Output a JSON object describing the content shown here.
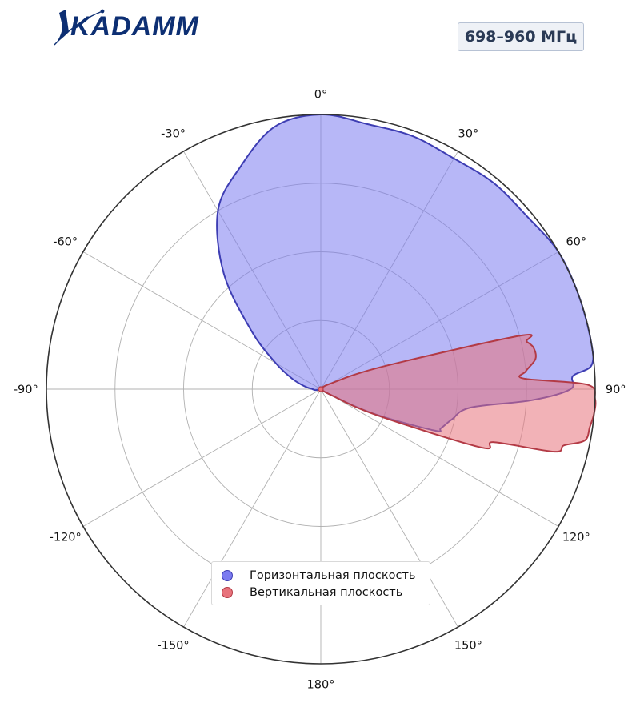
{
  "logo": {
    "text": "KADAMM"
  },
  "band_label": "698–960 МГц",
  "colors": {
    "horizontal_fill": "#7b7bf0",
    "horizontal_stroke": "#3d3db3",
    "vertical_fill": "#e8737c",
    "vertical_stroke": "#b33a45",
    "grid": "#b0b0b0",
    "frame": "#333333"
  },
  "chart_data": {
    "type": "polar-area",
    "title": "",
    "angle_ticks": [
      "0°",
      "30°",
      "60°",
      "90°",
      "120°",
      "150°",
      "180°",
      "-150°",
      "-120°",
      "-90°",
      "-60°",
      "-30°"
    ],
    "angle_tick_degrees": [
      0,
      30,
      60,
      90,
      120,
      150,
      180,
      -150,
      -120,
      -90,
      -60,
      -30
    ],
    "radial_range": [
      0,
      1
    ],
    "radial_grid": [
      0.25,
      0.5,
      0.75,
      1.0
    ],
    "grid": true,
    "legend_placement": "bottom-center",
    "series": [
      {
        "name": "Горизонтальная плоскость",
        "color": "#7b7bf0",
        "points": [
          [
            -180,
            0.0
          ],
          [
            -150,
            0.0
          ],
          [
            -120,
            0.0
          ],
          [
            -100,
            0.02
          ],
          [
            -90,
            0.03
          ],
          [
            -80,
            0.06
          ],
          [
            -70,
            0.11
          ],
          [
            -60,
            0.19
          ],
          [
            -50,
            0.33
          ],
          [
            -40,
            0.55
          ],
          [
            -30,
            0.75
          ],
          [
            -20,
            0.86
          ],
          [
            -10,
            0.97
          ],
          [
            0,
            1.0
          ],
          [
            10,
            0.98
          ],
          [
            20,
            0.98
          ],
          [
            30,
            0.97
          ],
          [
            40,
            0.98
          ],
          [
            50,
            0.98
          ],
          [
            60,
            1.0
          ],
          [
            70,
            1.0
          ],
          [
            80,
            1.0
          ],
          [
            85,
            0.99
          ],
          [
            87,
            0.92
          ],
          [
            90,
            0.91
          ],
          [
            93,
            0.77
          ],
          [
            97,
            0.55
          ],
          [
            103,
            0.49
          ],
          [
            108,
            0.46
          ],
          [
            110,
            0.44
          ],
          [
            115,
            0.21
          ],
          [
            120,
            0.04
          ],
          [
            150,
            0.0
          ],
          [
            180,
            0.0
          ]
        ]
      },
      {
        "name": "Вертикальная плоскость",
        "color": "#e8737c",
        "points": [
          [
            -180,
            0.0
          ],
          [
            -90,
            0.0
          ],
          [
            0,
            0.0
          ],
          [
            40,
            0.0
          ],
          [
            60,
            0.04
          ],
          [
            70,
            0.24
          ],
          [
            75,
            0.75
          ],
          [
            77,
            0.77
          ],
          [
            79,
            0.79
          ],
          [
            82,
            0.79
          ],
          [
            85,
            0.75
          ],
          [
            87,
            0.74
          ],
          [
            89,
            0.97
          ],
          [
            92,
            1.0
          ],
          [
            95,
            1.0
          ],
          [
            98,
            0.99
          ],
          [
            101,
            0.98
          ],
          [
            103,
            0.91
          ],
          [
            105,
            0.88
          ],
          [
            107,
            0.66
          ],
          [
            110,
            0.62
          ],
          [
            115,
            0.22
          ],
          [
            120,
            0.04
          ],
          [
            180,
            0.0
          ]
        ]
      }
    ]
  },
  "legend": {
    "items": [
      {
        "label": "Горизонтальная плоскость"
      },
      {
        "label": "Вертикальная плоскость"
      }
    ]
  }
}
